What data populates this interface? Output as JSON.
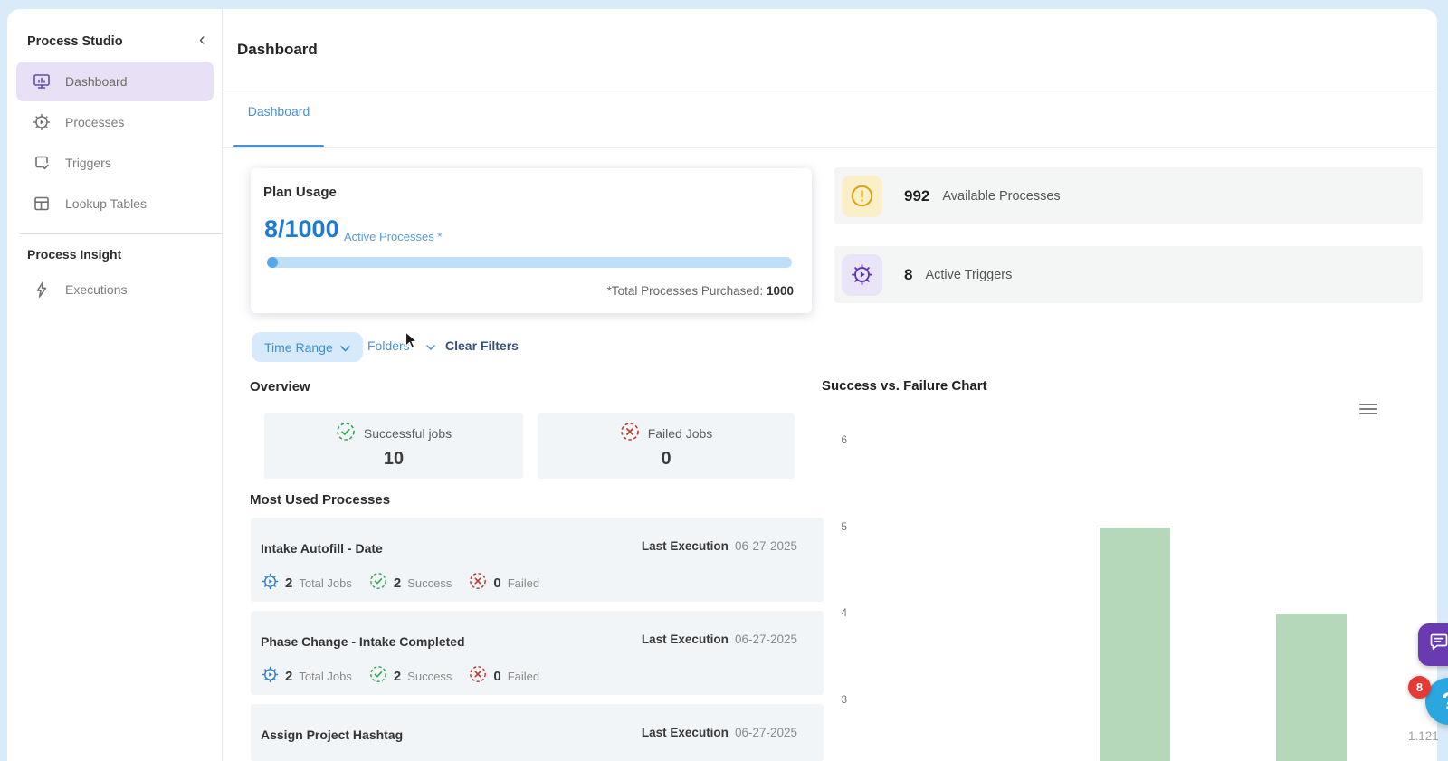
{
  "sidebar": {
    "title": "Process Studio",
    "items": [
      {
        "label": "Dashboard"
      },
      {
        "label": "Processes"
      },
      {
        "label": "Triggers"
      },
      {
        "label": "Lookup Tables"
      }
    ],
    "section_heading": "Process Insight",
    "insight_items": [
      {
        "label": "Executions"
      }
    ]
  },
  "header": {
    "title": "Dashboard"
  },
  "tabs": {
    "dashboard": "Dashboard"
  },
  "plan_usage": {
    "title": "Plan Usage",
    "usage": "8/1000",
    "usage_caption": "Active Processes *",
    "footnote_label": "*Total Processes Purchased:",
    "footnote_value": "1000",
    "progress_percent": 2
  },
  "filters": {
    "time_range": "Time Range",
    "folders": "Folders",
    "clear": "Clear Filters"
  },
  "stat_cards": {
    "available": {
      "value": "992",
      "label": "Available Processes"
    },
    "triggers": {
      "value": "8",
      "label": "Active Triggers"
    }
  },
  "overview": {
    "title": "Overview",
    "success": {
      "label": "Successful jobs",
      "value": "10"
    },
    "failed": {
      "label": "Failed Jobs",
      "value": "0"
    }
  },
  "most_used": {
    "title": "Most Used Processes",
    "last_execution_label": "Last Execution",
    "stat_labels": {
      "total": "Total Jobs",
      "success": "Success",
      "failed": "Failed"
    },
    "rows": [
      {
        "name": "Intake Autofill - Date",
        "date": "06-27-2025",
        "total": "2",
        "success": "2",
        "failed": "0"
      },
      {
        "name": "Phase Change - Intake Completed",
        "date": "06-27-2025",
        "total": "2",
        "success": "2",
        "failed": "0"
      },
      {
        "name": "Assign Project Hashtag",
        "date": "06-27-2025"
      }
    ]
  },
  "chart_data": {
    "type": "bar",
    "title": "Success vs. Failure Chart",
    "y_ticks": [
      6,
      5,
      4,
      3
    ],
    "series": [
      {
        "name": "Success",
        "values": [
          5,
          4
        ]
      }
    ],
    "bar_color": "#b5d8bb",
    "ylim_visible": [
      2.2,
      6.3
    ],
    "grid": false,
    "x_axis_visible": false,
    "legend": "hidden"
  },
  "floating": {
    "notification_count": "8",
    "version": "1.121"
  },
  "colors": {
    "frame_blue": "#d9eaf8",
    "accent_blue": "#1f7ad0",
    "link_blue": "#4a90d2",
    "active_purple": "#5e4db2",
    "success_green": "#34a853",
    "fail_red": "#c0392b",
    "bar_green": "#b5d8bb"
  }
}
